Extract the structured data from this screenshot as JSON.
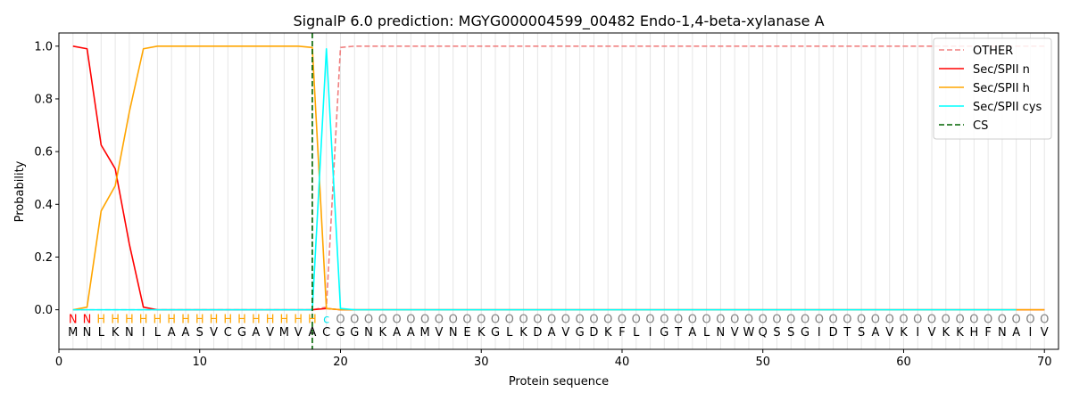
{
  "chart_data": {
    "type": "line",
    "title": "SignalP 6.0 prediction: MGYG000004599_00482 Endo-1,4-beta-xylanase A",
    "xlabel": "Protein sequence",
    "ylabel": "Probability",
    "xlim": [
      0,
      71
    ],
    "ylim": [
      -0.15,
      1.05
    ],
    "xticks": [
      0,
      10,
      20,
      30,
      40,
      50,
      60,
      70
    ],
    "yticks": [
      0.0,
      0.2,
      0.4,
      0.6,
      0.8,
      1.0
    ],
    "ytick_labels": [
      "0.0",
      "0.2",
      "0.4",
      "0.6",
      "0.8",
      "1.0"
    ],
    "grid": "vertical lines at every residue",
    "legend_position": "top-right",
    "sequence": "MNLKNILAASVCGAVMVACGGNKAAMVNEKGLKDAVGDKFLIGTALNVWQSSGIDTSAVKIVKKHFNAIV",
    "labels": "NNHHHHHHHHHHHHHHHHcOOOOOOOOOOOOOOOOOOOOOOOOOOOOOOOOOOOOOOOOOOOOOOOOOOO",
    "label_colors": {
      "N": "#ff0000",
      "H": "#ffa500",
      "c": "#00e5ee",
      "O": "#808080"
    },
    "cleavage_site": 18,
    "series": [
      {
        "name": "OTHER",
        "color": "#f08080",
        "dash": "dashed",
        "values": [
          0,
          0,
          0,
          0,
          0,
          0,
          0,
          0,
          0,
          0,
          0,
          0,
          0,
          0,
          0,
          0,
          0,
          0,
          0.01,
          0.995,
          1,
          1,
          1,
          1,
          1,
          1,
          1,
          1,
          1,
          1,
          1,
          1,
          1,
          1,
          1,
          1,
          1,
          1,
          1,
          1,
          1,
          1,
          1,
          1,
          1,
          1,
          1,
          1,
          1,
          1,
          1,
          1,
          1,
          1,
          1,
          1,
          1,
          1,
          1,
          1,
          1,
          1,
          1,
          1,
          1,
          1,
          1,
          1,
          1,
          1
        ]
      },
      {
        "name": "Sec/SPII n",
        "color": "#ff0000",
        "dash": "solid",
        "values": [
          1.0,
          0.99,
          0.625,
          0.535,
          0.25,
          0.01,
          0,
          0,
          0,
          0,
          0,
          0,
          0,
          0,
          0,
          0,
          0,
          0,
          0.005,
          0,
          0,
          0,
          0,
          0,
          0,
          0,
          0,
          0,
          0,
          0,
          0,
          0,
          0,
          0,
          0,
          0,
          0,
          0,
          0,
          0,
          0,
          0,
          0,
          0,
          0,
          0,
          0,
          0,
          0,
          0,
          0,
          0,
          0,
          0,
          0,
          0,
          0,
          0,
          0,
          0,
          0,
          0,
          0,
          0,
          0,
          0,
          0,
          0,
          0,
          0
        ]
      },
      {
        "name": "Sec/SPII h",
        "color": "#ffa500",
        "dash": "solid",
        "values": [
          0,
          0.01,
          0.375,
          0.47,
          0.75,
          0.99,
          1.0,
          1.0,
          1.0,
          1.0,
          1.0,
          1.0,
          1.0,
          1.0,
          1.0,
          1.0,
          1.0,
          0.995,
          0.005,
          0,
          0,
          0,
          0,
          0,
          0,
          0,
          0,
          0,
          0,
          0,
          0,
          0,
          0,
          0,
          0,
          0,
          0,
          0,
          0,
          0,
          0,
          0,
          0,
          0,
          0,
          0,
          0,
          0,
          0,
          0,
          0,
          0,
          0,
          0,
          0,
          0,
          0,
          0,
          0,
          0,
          0,
          0,
          0,
          0,
          0,
          0,
          0,
          0,
          0,
          0
        ]
      },
      {
        "name": "Sec/SPII cys",
        "color": "#00ffff",
        "dash": "solid",
        "values": [
          0,
          0,
          0,
          0,
          0,
          0,
          0,
          0,
          0,
          0,
          0,
          0,
          0,
          0,
          0,
          0,
          0,
          0,
          0.99,
          0.005,
          0,
          0,
          0,
          0,
          0,
          0,
          0,
          0,
          0,
          0,
          0,
          0,
          0,
          0,
          0,
          0,
          0,
          0,
          0,
          0,
          0,
          0,
          0,
          0,
          0,
          0,
          0,
          0,
          0,
          0,
          0,
          0,
          0,
          0,
          0,
          0,
          0,
          0,
          0,
          0,
          0,
          0,
          0,
          0,
          0,
          0,
          0,
          0
        ]
      },
      {
        "name": "CS",
        "color": "#006400",
        "dash": "dashed",
        "vertical_at": 18
      }
    ]
  }
}
